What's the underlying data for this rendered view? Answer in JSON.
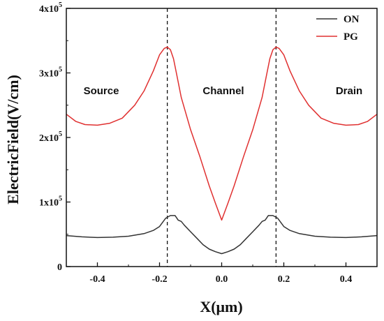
{
  "chart_data": {
    "type": "line",
    "xlabel": "X(μm)",
    "ylabel": "ElectricField(V/cm)",
    "xlim": [
      -0.5,
      0.5
    ],
    "ylim": [
      0,
      400000
    ],
    "x_ticks": [
      {
        "value": -0.4,
        "label": "-0.4"
      },
      {
        "value": -0.2,
        "label": "-0.2"
      },
      {
        "value": 0.0,
        "label": "0.0"
      },
      {
        "value": 0.2,
        "label": "0.2"
      },
      {
        "value": 0.4,
        "label": "0.4"
      }
    ],
    "y_ticks": [
      {
        "value": 0,
        "base": "0",
        "exp": ""
      },
      {
        "value": 100000,
        "base": "1x10",
        "exp": "5"
      },
      {
        "value": 200000,
        "base": "2x10",
        "exp": "5"
      },
      {
        "value": 300000,
        "base": "3x10",
        "exp": "5"
      },
      {
        "value": 400000,
        "base": "4x10",
        "exp": "5"
      }
    ],
    "vlines": [
      -0.175,
      0.175
    ],
    "regions": [
      "Source",
      "Channel",
      "Drain"
    ],
    "legend": {
      "placement": "top-right",
      "entries": [
        "ON",
        "PG"
      ]
    },
    "series": [
      {
        "name": "ON",
        "color": "#333333",
        "x": [
          -0.5,
          -0.45,
          -0.4,
          -0.35,
          -0.3,
          -0.25,
          -0.22,
          -0.2,
          -0.18,
          -0.165,
          -0.15,
          -0.14,
          -0.13,
          -0.12,
          -0.1,
          -0.08,
          -0.06,
          -0.04,
          -0.02,
          0.0,
          0.02,
          0.04,
          0.06,
          0.08,
          0.1,
          0.12,
          0.13,
          0.14,
          0.15,
          0.165,
          0.18,
          0.2,
          0.22,
          0.25,
          0.3,
          0.35,
          0.4,
          0.45,
          0.5
        ],
        "y": [
          48000,
          46000,
          45000,
          45500,
          47000,
          51000,
          56000,
          62000,
          75000,
          79000,
          79000,
          72000,
          70000,
          64000,
          54000,
          44000,
          34000,
          27000,
          23000,
          20000,
          23000,
          27000,
          34000,
          44000,
          54000,
          64000,
          70000,
          72000,
          79000,
          79000,
          75000,
          62000,
          56000,
          51000,
          47000,
          45500,
          45000,
          46000,
          48000
        ]
      },
      {
        "name": "PG",
        "color": "#e03030",
        "x": [
          -0.5,
          -0.47,
          -0.44,
          -0.4,
          -0.36,
          -0.32,
          -0.28,
          -0.25,
          -0.22,
          -0.2,
          -0.185,
          -0.175,
          -0.165,
          -0.155,
          -0.145,
          -0.13,
          -0.1,
          -0.07,
          -0.04,
          -0.02,
          0.0,
          0.02,
          0.04,
          0.07,
          0.1,
          0.13,
          0.145,
          0.155,
          0.165,
          0.175,
          0.185,
          0.2,
          0.22,
          0.25,
          0.28,
          0.32,
          0.36,
          0.4,
          0.44,
          0.47,
          0.5
        ],
        "y": [
          236000,
          225000,
          220000,
          219000,
          222000,
          230000,
          250000,
          272000,
          303000,
          328000,
          338000,
          340000,
          336000,
          322000,
          298000,
          262000,
          212000,
          170000,
          125000,
          98000,
          72000,
          98000,
          125000,
          170000,
          212000,
          262000,
          298000,
          322000,
          336000,
          340000,
          338000,
          328000,
          303000,
          272000,
          250000,
          230000,
          222000,
          219000,
          220000,
          225000,
          236000
        ]
      }
    ]
  }
}
